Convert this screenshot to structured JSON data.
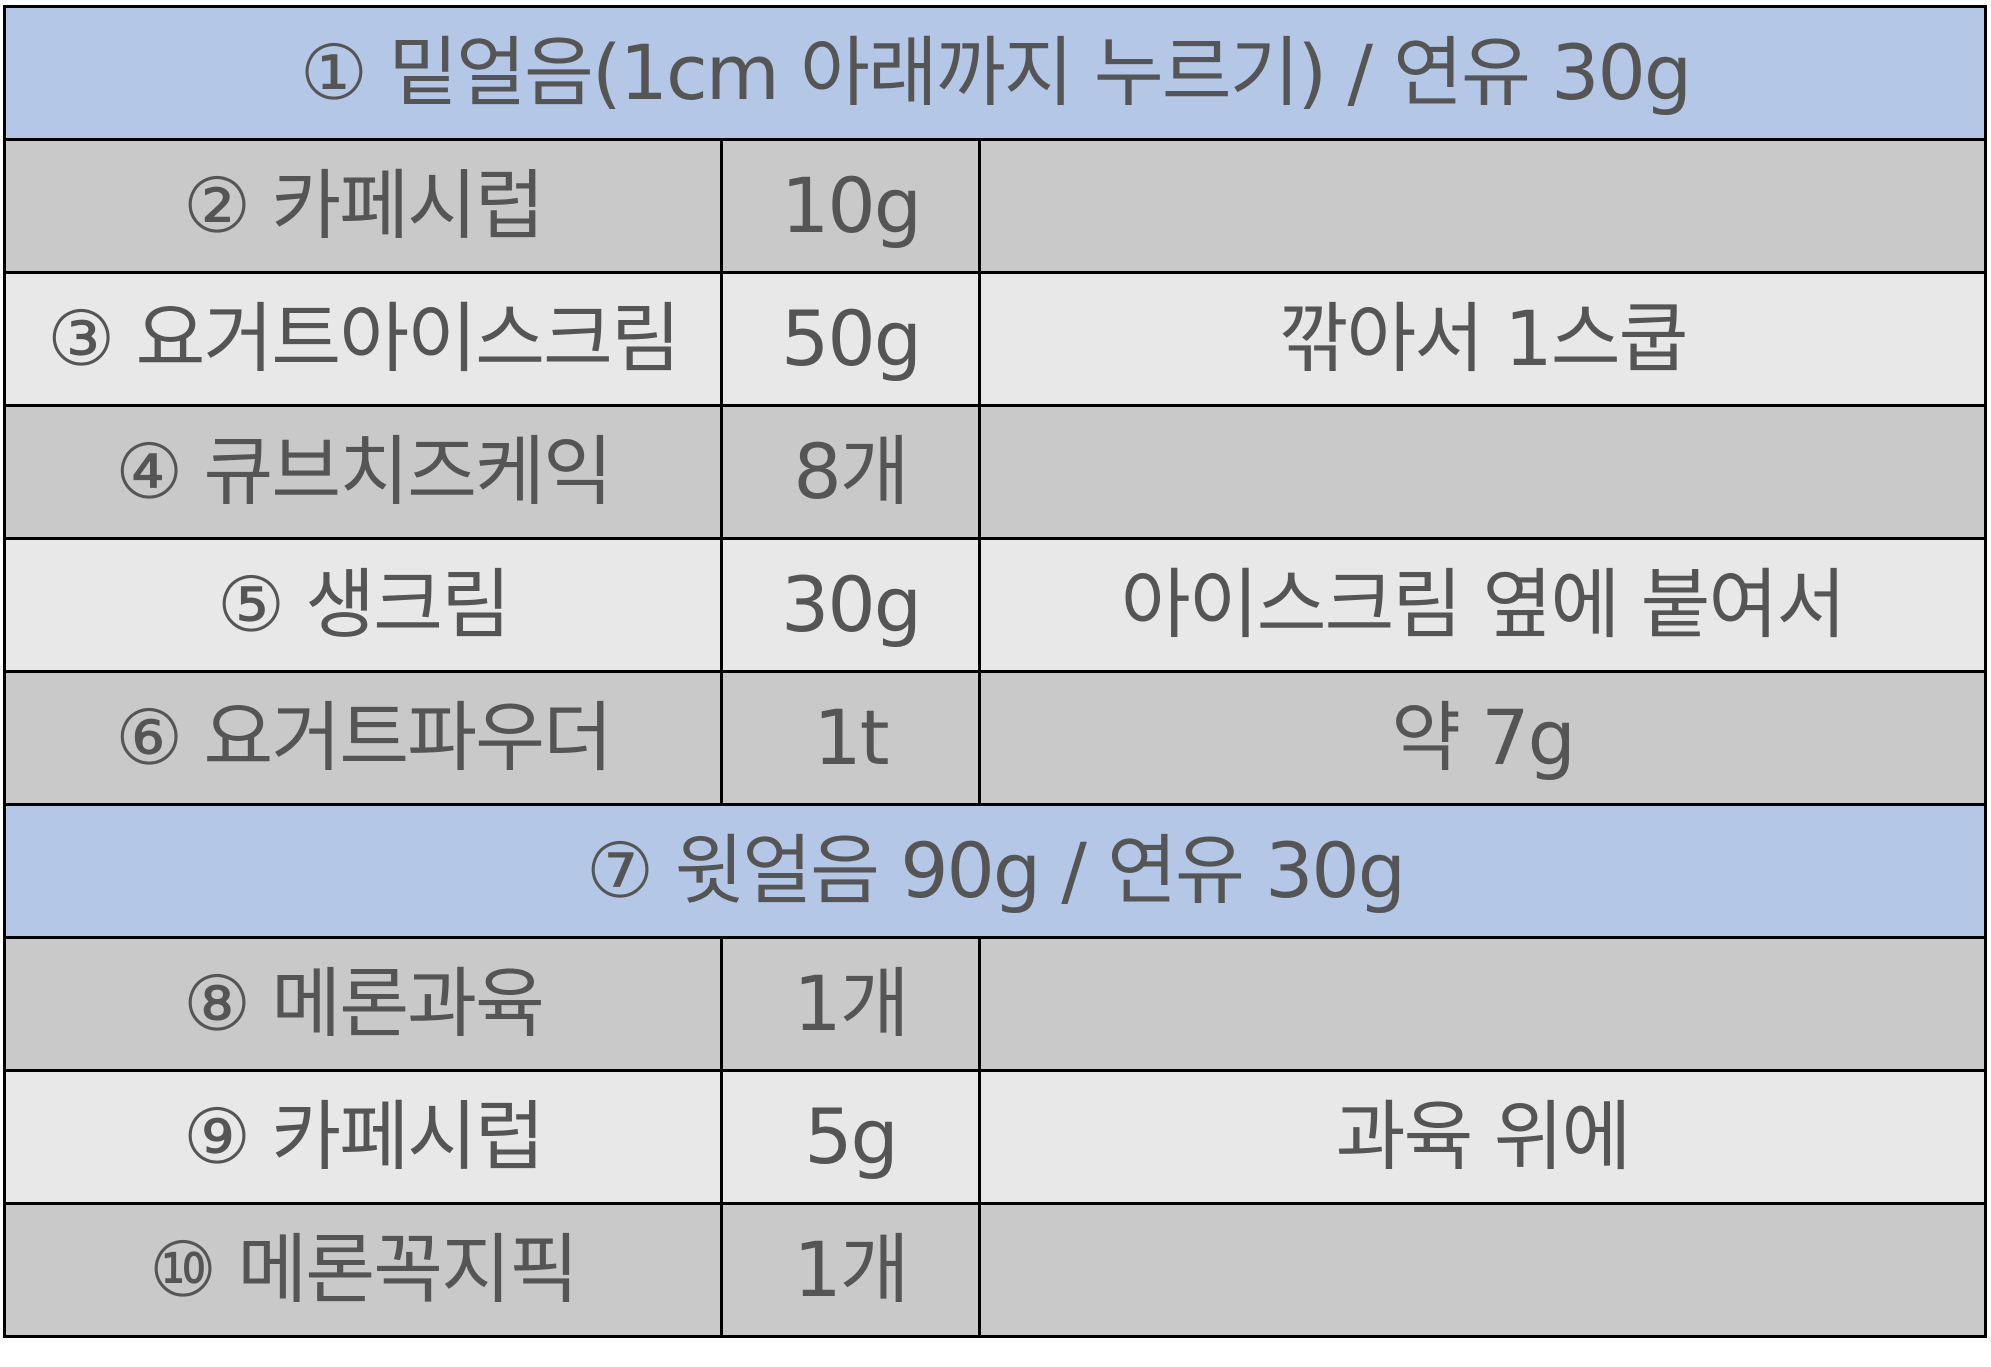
{
  "colors": {
    "header_bg": "#b4c7e7",
    "row_dark_bg": "#c9c9c9",
    "row_light_bg": "#e8e8e8",
    "text": "#555555",
    "border": "#000000"
  },
  "rows": [
    {
      "type": "header",
      "text": "① 밑얼음(1cm 아래까지 누르기) / 연유 30g"
    },
    {
      "type": "dark",
      "item": "② 카페시럽",
      "amount": "10g",
      "note": ""
    },
    {
      "type": "light",
      "item": "③ 요거트아이스크림",
      "amount": "50g",
      "note": "깎아서 1스쿱"
    },
    {
      "type": "dark",
      "item": "④ 큐브치즈케익",
      "amount": "8개",
      "note": ""
    },
    {
      "type": "light",
      "item": "⑤ 생크림",
      "amount": "30g",
      "note": "아이스크림 옆에 붙여서"
    },
    {
      "type": "dark",
      "item": "⑥ 요거트파우더",
      "amount": "1t",
      "note": "약 7g"
    },
    {
      "type": "header",
      "text": "⑦ 윗얼음 90g / 연유 30g"
    },
    {
      "type": "dark",
      "item": "⑧ 메론과육",
      "amount": "1개",
      "note": ""
    },
    {
      "type": "light",
      "item": "⑨ 카페시럽",
      "amount": "5g",
      "note": "과육 위에"
    },
    {
      "type": "dark",
      "item": "⑩ 메론꼭지픽",
      "amount": "1개",
      "note": ""
    }
  ]
}
